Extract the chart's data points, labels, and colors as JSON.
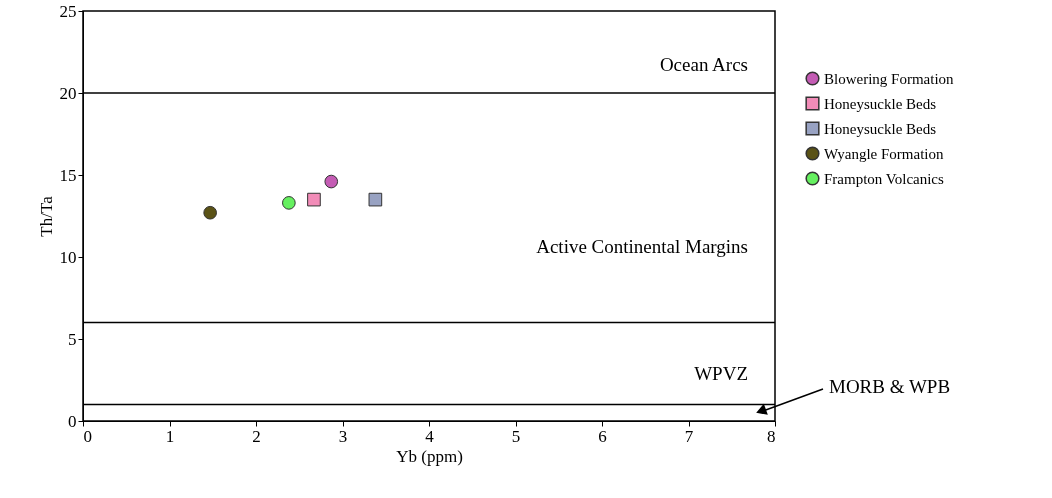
{
  "chart_data": {
    "type": "scatter",
    "xlabel": "Yb (ppm)",
    "ylabel": "Th/Ta",
    "xlim": [
      0,
      8
    ],
    "xticks": [
      0,
      1,
      2,
      3,
      4,
      5,
      6,
      7,
      8
    ],
    "ylim": [
      0,
      25
    ],
    "yticks": [
      0,
      5,
      10,
      15,
      20,
      25
    ],
    "grid": false,
    "legend": "top right",
    "series": [
      {
        "name": "Blowering Formation",
        "color": "#c45cb4",
        "marker": "circle",
        "x": [
          2.87
        ],
        "values": [
          14.6
        ]
      },
      {
        "name": "Honeysuckle Beds",
        "color": "#f28cb8",
        "marker": "square",
        "x": [
          2.67
        ],
        "values": [
          13.5
        ]
      },
      {
        "name": "Honeysuckle Beds",
        "color": "#98a2c2",
        "marker": "square",
        "x": [
          3.38
        ],
        "values": [
          13.5
        ]
      },
      {
        "name": "Wyangle Formation",
        "color": "#5a5216",
        "marker": "circle",
        "x": [
          1.47
        ],
        "values": [
          12.7
        ]
      },
      {
        "name": "Frampton Volcanics",
        "color": "#66f060",
        "marker": "circle",
        "x": [
          2.38
        ],
        "values": [
          13.3
        ]
      }
    ],
    "ref_lines": [
      {
        "axis": "y",
        "value": 20,
        "color": "#000000"
      },
      {
        "axis": "y",
        "value": 6,
        "color": "#000000"
      },
      {
        "axis": "y",
        "value": 1,
        "color": "#000000"
      }
    ],
    "annotations": [
      "Ocean Arcs",
      "Active Continental Margins",
      "WPVZ",
      "MORB & WPB"
    ]
  }
}
